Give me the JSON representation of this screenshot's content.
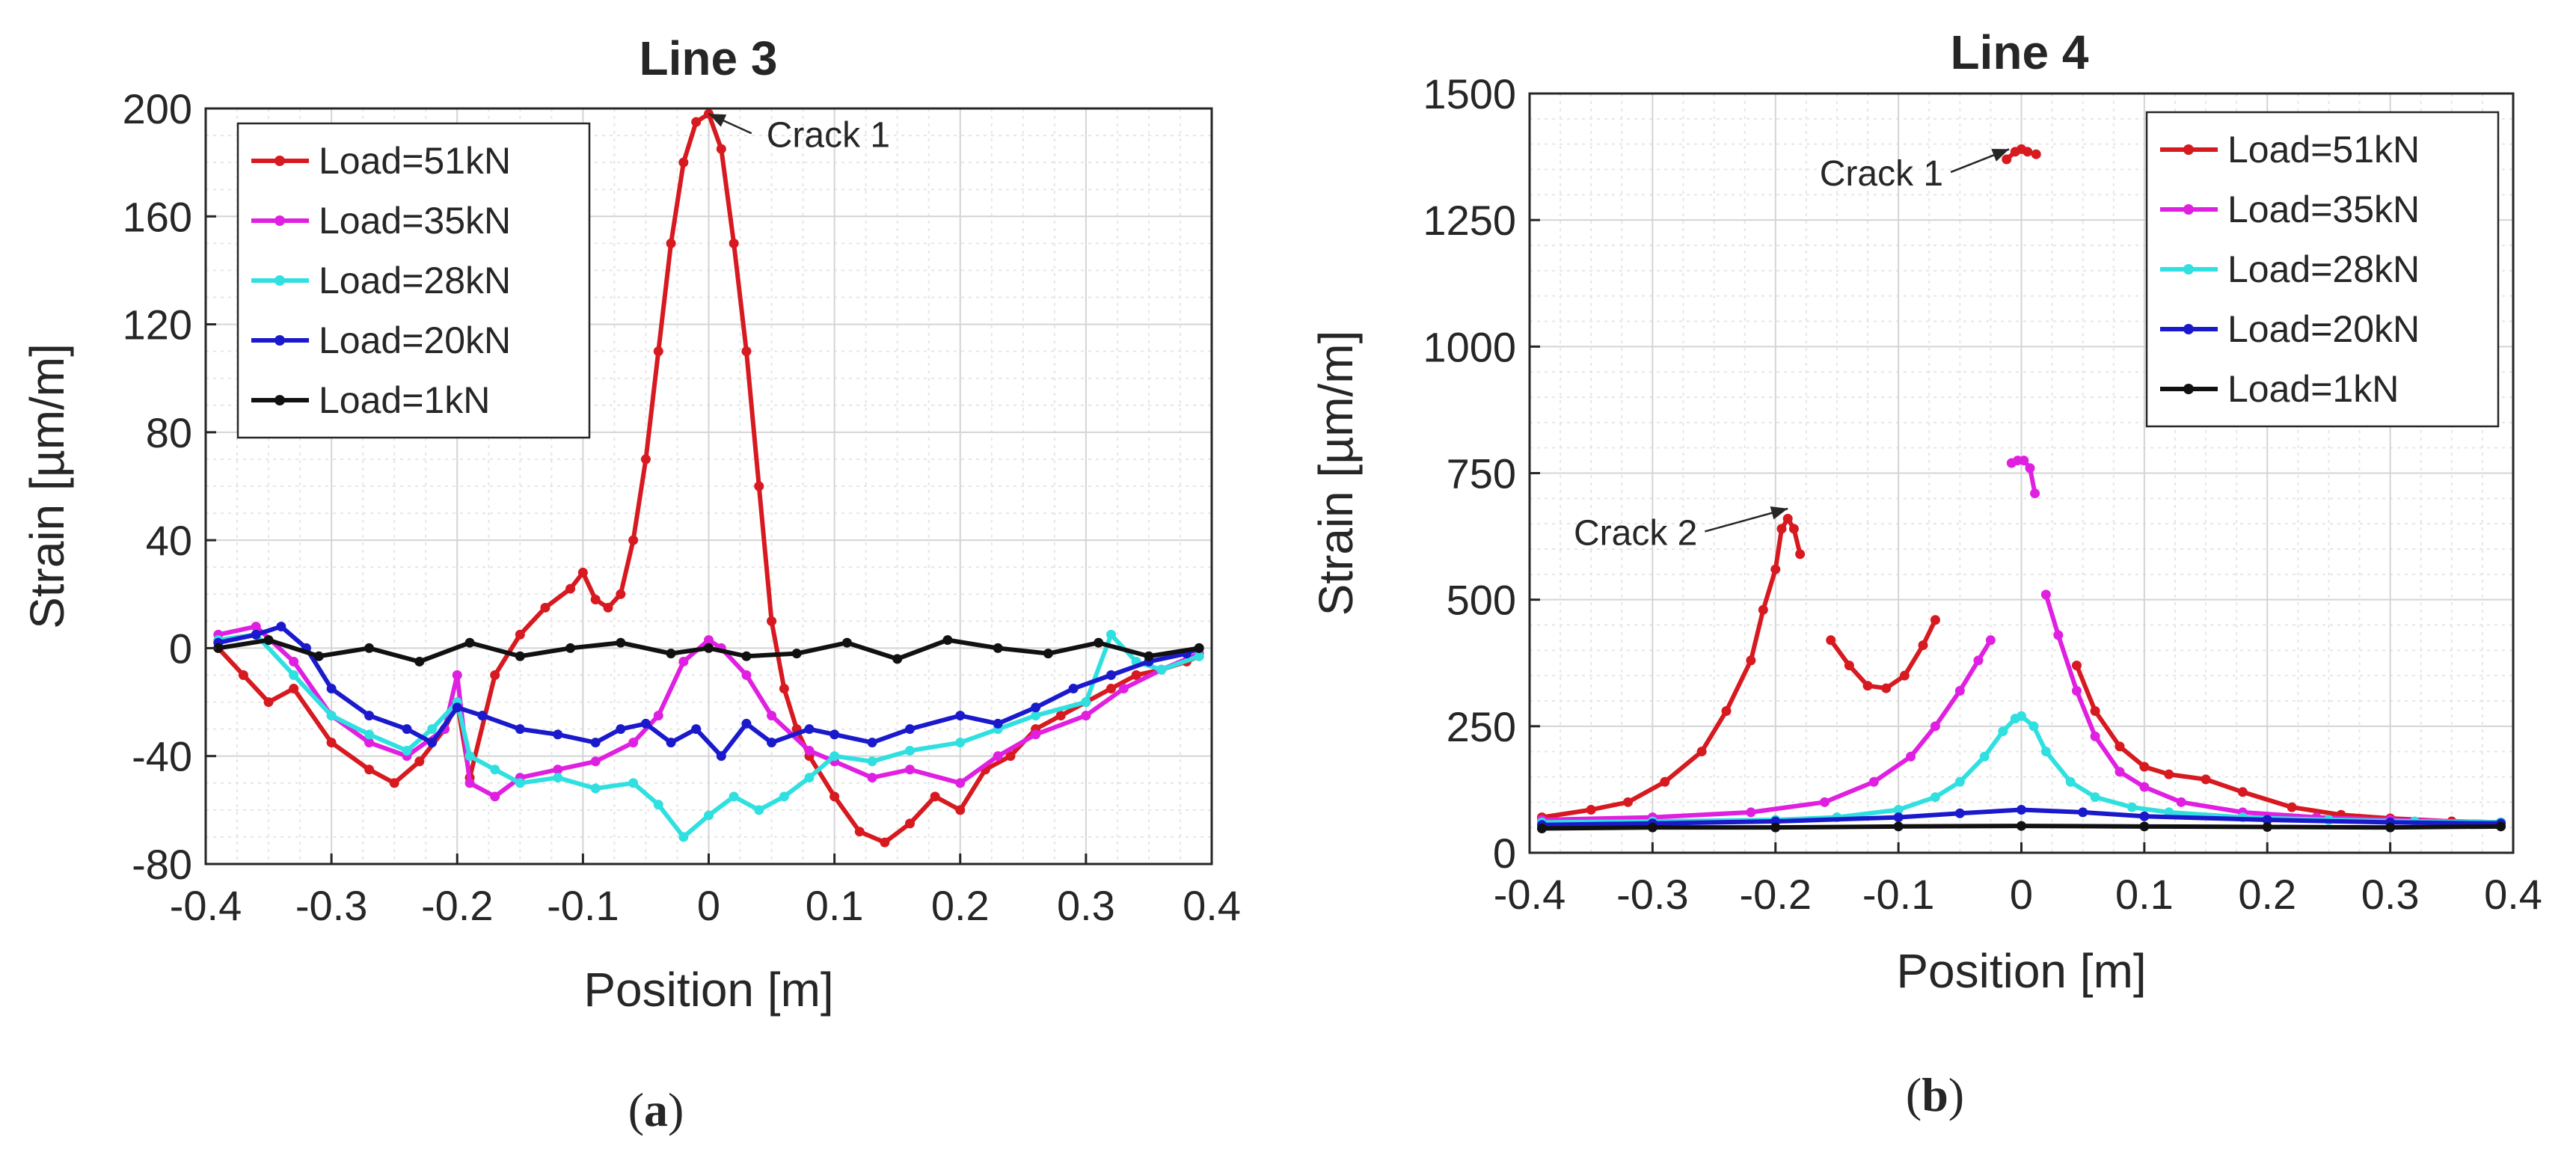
{
  "chart_data": [
    {
      "type": "line",
      "panel_label": "(a)",
      "title": "Line 3",
      "xlabel": "Position [m]",
      "ylabel": "Strain [µm/m]",
      "xlim": [
        -0.4,
        0.4
      ],
      "ylim": [
        -80,
        200
      ],
      "xticks": [
        -0.4,
        -0.3,
        -0.2,
        -0.1,
        0,
        0.1,
        0.2,
        0.3,
        0.4
      ],
      "xtick_labels": [
        "-0.4",
        "-0.3",
        "-0.2",
        "-0.1",
        "0",
        "0.1",
        "0.2",
        "0.3",
        "0.4"
      ],
      "yticks": [
        -80,
        -40,
        0,
        40,
        80,
        120,
        160,
        200
      ],
      "ytick_labels": [
        "-80",
        "-40",
        "0",
        "40",
        "80",
        "120",
        "160",
        "200"
      ],
      "grid": true,
      "legend_position": "top-left",
      "annotations": [
        {
          "text": "Crack 1",
          "target": [
            0.0,
            198
          ],
          "label_at": [
            0.04,
            188
          ]
        }
      ],
      "series": [
        {
          "name": "Load=51kN",
          "color": "#d71920",
          "x": [
            -0.39,
            -0.37,
            -0.35,
            -0.33,
            -0.3,
            -0.27,
            -0.25,
            -0.23,
            -0.21,
            -0.2,
            -0.19,
            -0.17,
            -0.15,
            -0.13,
            -0.11,
            -0.1,
            -0.09,
            -0.08,
            -0.07,
            -0.06,
            -0.05,
            -0.04,
            -0.03,
            -0.02,
            -0.01,
            0.0,
            0.01,
            0.02,
            0.03,
            0.04,
            0.05,
            0.06,
            0.07,
            0.08,
            0.1,
            0.12,
            0.14,
            0.16,
            0.18,
            0.2,
            0.22,
            0.24,
            0.26,
            0.28,
            0.3,
            0.32,
            0.34,
            0.36,
            0.38,
            0.39
          ],
          "y": [
            0,
            -10,
            -20,
            -15,
            -35,
            -45,
            -50,
            -42,
            -30,
            -20,
            -48,
            -10,
            5,
            15,
            22,
            28,
            18,
            15,
            20,
            40,
            70,
            110,
            150,
            180,
            195,
            198,
            185,
            150,
            110,
            60,
            10,
            -15,
            -30,
            -40,
            -55,
            -68,
            -72,
            -65,
            -55,
            -60,
            -45,
            -40,
            -30,
            -25,
            -20,
            -15,
            -10,
            -8,
            -5,
            -3
          ]
        },
        {
          "name": "Load=35kN",
          "color": "#e020e0",
          "x": [
            -0.39,
            -0.36,
            -0.33,
            -0.3,
            -0.27,
            -0.24,
            -0.21,
            -0.2,
            -0.19,
            -0.17,
            -0.15,
            -0.12,
            -0.09,
            -0.06,
            -0.04,
            -0.02,
            0.0,
            0.01,
            0.03,
            0.05,
            0.08,
            0.1,
            0.13,
            0.16,
            0.2,
            0.23,
            0.26,
            0.3,
            0.33,
            0.36,
            0.39
          ],
          "y": [
            5,
            8,
            -5,
            -25,
            -35,
            -40,
            -30,
            -10,
            -50,
            -55,
            -48,
            -45,
            -42,
            -35,
            -25,
            -5,
            3,
            0,
            -10,
            -25,
            -38,
            -42,
            -48,
            -45,
            -50,
            -40,
            -32,
            -25,
            -15,
            -8,
            -2
          ]
        },
        {
          "name": "Load=28kN",
          "color": "#30e0e0",
          "x": [
            -0.39,
            -0.36,
            -0.33,
            -0.3,
            -0.27,
            -0.24,
            -0.22,
            -0.2,
            -0.19,
            -0.17,
            -0.15,
            -0.12,
            -0.09,
            -0.06,
            -0.04,
            -0.02,
            0.0,
            0.02,
            0.04,
            0.06,
            0.08,
            0.1,
            0.13,
            0.16,
            0.2,
            0.23,
            0.26,
            0.3,
            0.32,
            0.34,
            0.36,
            0.39
          ],
          "y": [
            3,
            5,
            -10,
            -25,
            -32,
            -38,
            -30,
            -20,
            -40,
            -45,
            -50,
            -48,
            -52,
            -50,
            -58,
            -70,
            -62,
            -55,
            -60,
            -55,
            -48,
            -40,
            -42,
            -38,
            -35,
            -30,
            -25,
            -20,
            5,
            -5,
            -8,
            -3
          ]
        },
        {
          "name": "Load=20kN",
          "color": "#1a1acc",
          "x": [
            -0.39,
            -0.36,
            -0.34,
            -0.32,
            -0.3,
            -0.27,
            -0.24,
            -0.22,
            -0.2,
            -0.18,
            -0.15,
            -0.12,
            -0.09,
            -0.07,
            -0.05,
            -0.03,
            -0.01,
            0.01,
            0.03,
            0.05,
            0.08,
            0.1,
            0.13,
            0.16,
            0.2,
            0.23,
            0.26,
            0.29,
            0.32,
            0.35,
            0.38,
            0.39
          ],
          "y": [
            2,
            5,
            8,
            0,
            -15,
            -25,
            -30,
            -35,
            -22,
            -25,
            -30,
            -32,
            -35,
            -30,
            -28,
            -35,
            -30,
            -40,
            -28,
            -35,
            -30,
            -32,
            -35,
            -30,
            -25,
            -28,
            -22,
            -15,
            -10,
            -5,
            -2,
            0
          ]
        },
        {
          "name": "Load=1kN",
          "color": "#111111",
          "x": [
            -0.39,
            -0.35,
            -0.31,
            -0.27,
            -0.23,
            -0.19,
            -0.15,
            -0.11,
            -0.07,
            -0.03,
            0.0,
            0.03,
            0.07,
            0.11,
            0.15,
            0.19,
            0.23,
            0.27,
            0.31,
            0.35,
            0.39
          ],
          "y": [
            0,
            3,
            -3,
            0,
            -5,
            2,
            -3,
            0,
            2,
            -2,
            0,
            -3,
            -2,
            2,
            -4,
            3,
            0,
            -2,
            2,
            -3,
            0
          ]
        }
      ]
    },
    {
      "type": "line",
      "panel_label": "(b)",
      "title": "Line 4",
      "xlabel": "Position [m]",
      "ylabel": "Strain [µm/m]",
      "xlim": [
        -0.4,
        0.4
      ],
      "ylim": [
        0,
        1500
      ],
      "xticks": [
        -0.4,
        -0.3,
        -0.2,
        -0.1,
        0,
        0.1,
        0.2,
        0.3,
        0.4
      ],
      "xtick_labels": [
        "-0.4",
        "-0.3",
        "-0.2",
        "-0.1",
        "0",
        "0.1",
        "0.2",
        "0.3",
        "0.4"
      ],
      "yticks": [
        0,
        250,
        500,
        750,
        1000,
        1250,
        1500
      ],
      "ytick_labels": [
        "0",
        "250",
        "500",
        "750",
        "1000",
        "1250",
        "1500"
      ],
      "grid": true,
      "legend_position": "top-right",
      "annotations": [
        {
          "text": "Crack 1",
          "target": [
            -0.01,
            1390
          ],
          "label_at": [
            -0.1,
            1330
          ]
        },
        {
          "text": "Crack 2",
          "target": [
            -0.19,
            680
          ],
          "label_at": [
            -0.3,
            620
          ]
        }
      ],
      "series": [
        {
          "name": "Load=51kN",
          "color": "#d71920",
          "segments": [
            {
              "x": [
                -0.39,
                -0.35,
                -0.32,
                -0.29,
                -0.26,
                -0.24,
                -0.22,
                -0.21,
                -0.2,
                -0.195,
                -0.19,
                -0.185,
                -0.18
              ],
              "y": [
                70,
                85,
                100,
                140,
                200,
                280,
                380,
                480,
                560,
                640,
                660,
                640,
                590
              ]
            },
            {
              "x": [
                -0.155,
                -0.14,
                -0.125,
                -0.11,
                -0.095,
                -0.08,
                -0.07
              ],
              "y": [
                420,
                370,
                330,
                325,
                350,
                410,
                460
              ]
            },
            {
              "x": [
                -0.012,
                -0.005,
                0.0,
                0.005,
                0.012
              ],
              "y": [
                1370,
                1385,
                1390,
                1385,
                1380
              ]
            },
            {
              "x": [
                0.045,
                0.06,
                0.08,
                0.1,
                0.12,
                0.15,
                0.18,
                0.22,
                0.26,
                0.3,
                0.35,
                0.39
              ],
              "y": [
                370,
                280,
                210,
                170,
                155,
                145,
                120,
                90,
                75,
                68,
                62,
                60
              ]
            }
          ]
        },
        {
          "name": "Load=35kN",
          "color": "#e020e0",
          "segments": [
            {
              "x": [
                -0.39,
                -0.3,
                -0.22,
                -0.16,
                -0.12,
                -0.09,
                -0.07,
                -0.05,
                -0.035,
                -0.025
              ],
              "y": [
                65,
                70,
                80,
                100,
                140,
                190,
                250,
                320,
                380,
                420
              ]
            },
            {
              "x": [
                -0.008,
                -0.003,
                0.002,
                0.007,
                0.011
              ],
              "y": [
                770,
                775,
                775,
                760,
                710
              ]
            },
            {
              "x": [
                0.02,
                0.03,
                0.045,
                0.06,
                0.08,
                0.1,
                0.13,
                0.18,
                0.24,
                0.3,
                0.39
              ],
              "y": [
                510,
                430,
                320,
                230,
                160,
                130,
                100,
                80,
                70,
                65,
                60
              ]
            }
          ]
        },
        {
          "name": "Load=28kN",
          "color": "#30e0e0",
          "x": [
            -0.39,
            -0.3,
            -0.2,
            -0.15,
            -0.1,
            -0.07,
            -0.05,
            -0.03,
            -0.015,
            -0.005,
            0.0,
            0.01,
            0.02,
            0.04,
            0.06,
            0.09,
            0.12,
            0.18,
            0.25,
            0.32,
            0.39
          ],
          "y": [
            60,
            62,
            65,
            70,
            85,
            110,
            140,
            190,
            240,
            265,
            270,
            250,
            200,
            140,
            110,
            90,
            80,
            70,
            65,
            62,
            60
          ]
        },
        {
          "name": "Load=20kN",
          "color": "#1a1acc",
          "x": [
            -0.39,
            -0.3,
            -0.2,
            -0.1,
            -0.05,
            0.0,
            0.05,
            0.1,
            0.2,
            0.3,
            0.39
          ],
          "y": [
            55,
            58,
            62,
            70,
            78,
            85,
            80,
            72,
            65,
            60,
            58
          ]
        },
        {
          "name": "Load=1kN",
          "color": "#111111",
          "x": [
            -0.39,
            -0.3,
            -0.2,
            -0.1,
            0.0,
            0.1,
            0.2,
            0.3,
            0.39
          ],
          "y": [
            48,
            50,
            50,
            52,
            53,
            52,
            51,
            50,
            52
          ]
        }
      ]
    }
  ]
}
